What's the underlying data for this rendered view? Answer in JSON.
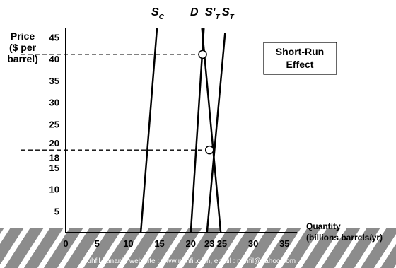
{
  "chart_data": {
    "type": "line",
    "ylabel": [
      "Price",
      "($ per",
      "barrel)"
    ],
    "xlabel": [
      "Quantity",
      "(billions barrels/yr)"
    ],
    "xlim": [
      0,
      37
    ],
    "ylim": [
      0,
      47
    ],
    "xticks": [
      "0",
      "5",
      "10",
      "15",
      "20",
      "23",
      "25",
      "30",
      "35"
    ],
    "xtick_values": [
      0,
      5,
      10,
      15,
      20,
      23,
      25,
      30,
      35
    ],
    "yticks": [
      "5",
      "10",
      "15",
      "18",
      "20",
      "25",
      "30",
      "35",
      "40",
      "45"
    ],
    "ytick_values": [
      5,
      10,
      15,
      18,
      20,
      25,
      30,
      35,
      40,
      45
    ],
    "series": [
      {
        "name": "S",
        "subscript": "C",
        "points": [
          [
            12,
            0
          ],
          [
            14.6,
            47
          ]
        ]
      },
      {
        "name": "D",
        "subscript": "",
        "points": [
          [
            20,
            0
          ],
          [
            22.1,
            47
          ]
        ]
      },
      {
        "name": "S'",
        "subscript": "T",
        "points": [
          [
            24.8,
            0
          ],
          [
            21.8,
            47
          ]
        ]
      },
      {
        "name": "S",
        "subscript": "T",
        "points": [
          [
            22.6,
            0
          ],
          [
            25.5,
            46
          ]
        ]
      }
    ],
    "equilibria": [
      {
        "x": 21.9,
        "y": 41
      },
      {
        "x": 23,
        "y": 19
      }
    ],
    "annotation": [
      "Short-Run",
      "Effect"
    ]
  },
  "footer": "nuhfil hanani : web site : www.nuhfil.com, email : nuhfil@yahoo.com"
}
